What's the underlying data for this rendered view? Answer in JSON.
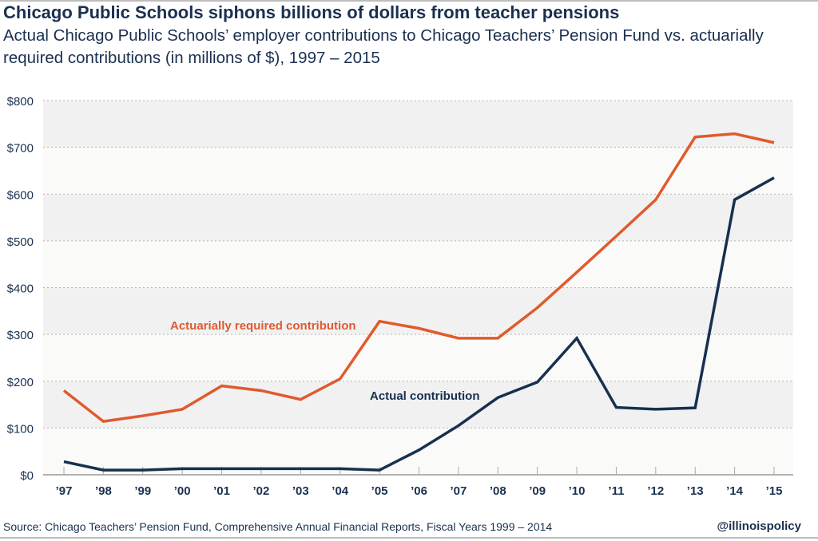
{
  "title": "Chicago Public Schools siphons billions of dollars from teacher pensions",
  "subtitle": "Actual Chicago Public Schools’ employer contributions to Chicago Teachers’ Pension Fund vs. actuarially required contributions (in millions of $), 1997 – 2015",
  "source": "Source: Chicago Teachers’ Pension Fund, Comprehensive Annual Financial Reports, Fiscal Years 1999 – 2014",
  "handle": "@illinoispolicy",
  "chart_data": {
    "type": "line",
    "categories": [
      "’97",
      "’98",
      "’99",
      "’00",
      "’01",
      "’02",
      "’03",
      "’04",
      "’05",
      "’06",
      "’07",
      "’08",
      "’09",
      "’10",
      "’11",
      "’12",
      "’13",
      "’14",
      "’15"
    ],
    "ylim": [
      0,
      800
    ],
    "yticks": [
      0,
      100,
      200,
      300,
      400,
      500,
      600,
      700,
      800
    ],
    "ytick_labels": [
      "$0",
      "$100",
      "$200",
      "$300",
      "$400",
      "$500",
      "$600",
      "$700",
      "$800"
    ],
    "grid": true,
    "series": [
      {
        "name": "Actuarially required contribution",
        "color": "#e05a2e",
        "values": [
          180,
          114,
          126,
          140,
          190,
          180,
          161,
          205,
          328,
          313,
          292,
          292,
          357,
          433,
          510,
          588,
          722,
          729,
          710
        ]
      },
      {
        "name": "Actual contribution",
        "color": "#17304f",
        "values": [
          28,
          10,
          10,
          13,
          13,
          13,
          13,
          13,
          10,
          53,
          105,
          165,
          198,
          292,
          144,
          140,
          143,
          588,
          635
        ]
      }
    ]
  }
}
